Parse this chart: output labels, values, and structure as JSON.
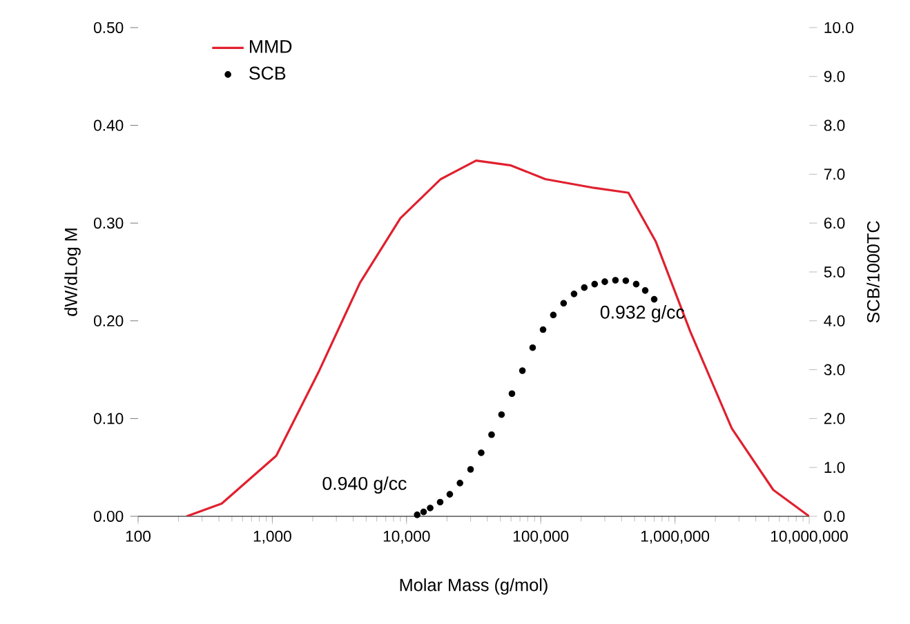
{
  "chart_data": {
    "type": "line",
    "xlabel": "Molar Mass (g/mol)",
    "ylabel": "dW/dLog M",
    "y2label": "SCB/1000TC",
    "log": "x",
    "legend": "top left",
    "grid": false,
    "xlim": [
      100,
      10000000
    ],
    "xticks": [
      {
        "value": 100,
        "label": "100"
      },
      {
        "value": 1000,
        "label": "1,000"
      },
      {
        "value": 10000,
        "label": "10,000"
      },
      {
        "value": 100000,
        "label": "100,000"
      },
      {
        "value": 1000000,
        "label": "1,000,000"
      },
      {
        "value": 10000000,
        "label": "10,000,000"
      }
    ],
    "ylim": [
      0,
      0.5
    ],
    "yticks": [
      {
        "value": 0,
        "label": "0.00"
      },
      {
        "value": 0.1,
        "label": "0.10"
      },
      {
        "value": 0.2,
        "label": "0.20"
      },
      {
        "value": 0.3,
        "label": "0.30"
      },
      {
        "value": 0.4,
        "label": "0.40"
      },
      {
        "value": 0.5,
        "label": "0.50"
      }
    ],
    "y2lim": [
      0,
      10
    ],
    "y2ticks": [
      {
        "value": 0,
        "label": "0.0"
      },
      {
        "value": 1,
        "label": "1.0"
      },
      {
        "value": 2,
        "label": "2.0"
      },
      {
        "value": 3,
        "label": "3.0"
      },
      {
        "value": 4,
        "label": "4.0"
      },
      {
        "value": 5,
        "label": "5.0"
      },
      {
        "value": 6,
        "label": "6.0"
      },
      {
        "value": 7,
        "label": "7.0"
      },
      {
        "value": 8,
        "label": "8.0"
      },
      {
        "value": 9,
        "label": "9.0"
      },
      {
        "value": 10,
        "label": "10.0"
      }
    ],
    "series": [
      {
        "name": "MMD",
        "color": "#e0202e",
        "marker": "none",
        "line_style": "solid",
        "x": [
          230,
          420,
          1070,
          2200,
          4500,
          9000,
          18000,
          33000,
          60000,
          108000,
          250000,
          450000,
          720000,
          1300000,
          2650000,
          5400000,
          10000000
        ],
        "values": [
          0,
          0.013,
          0.062,
          0.147,
          0.239,
          0.305,
          0.345,
          0.364,
          0.359,
          0.345,
          0.336,
          0.331,
          0.281,
          0.189,
          0.09,
          0.027,
          0
        ]
      },
      {
        "name": "SCB",
        "type": "scatter",
        "axis": "y2",
        "color": "#000000",
        "marker": "circle",
        "x": [
          12000,
          13400,
          15000,
          17800,
          21000,
          25000,
          30000,
          36000,
          43000,
          51000,
          61000,
          73000,
          87000,
          104000,
          124000,
          148000,
          177000,
          211000,
          252000,
          300000,
          360000,
          430000,
          514000,
          600000,
          700000
        ],
        "values": [
          0.03,
          0.09,
          0.17,
          0.29,
          0.45,
          0.68,
          0.96,
          1.3,
          1.67,
          2.08,
          2.51,
          2.98,
          3.45,
          3.82,
          4.12,
          4.36,
          4.55,
          4.68,
          4.75,
          4.8,
          4.83,
          4.82,
          4.75,
          4.62,
          4.44
        ]
      }
    ],
    "annotations": [
      "0.940 g/cc",
      "0.932 g/cc"
    ]
  }
}
